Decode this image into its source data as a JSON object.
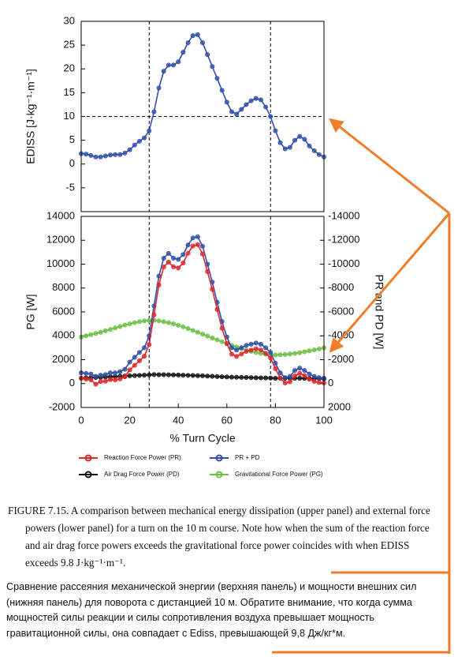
{
  "chart_data": [
    {
      "type": "line",
      "ylabel": "EDISS [J·kg⁻¹·m⁻¹]",
      "x": [
        0,
        2,
        4,
        6,
        8,
        10,
        12,
        14,
        16,
        18,
        20,
        22,
        24,
        26,
        28,
        30,
        32,
        34,
        36,
        38,
        40,
        42,
        44,
        46,
        48,
        50,
        52,
        54,
        56,
        58,
        60,
        62,
        64,
        66,
        68,
        70,
        72,
        74,
        76,
        78,
        80,
        82,
        84,
        86,
        88,
        90,
        92,
        94,
        96,
        98,
        100
      ],
      "values": [
        2.2,
        2.1,
        1.8,
        1.5,
        1.5,
        1.7,
        1.9,
        2.0,
        2.0,
        2.3,
        3.0,
        4.0,
        4.8,
        5.5,
        7.0,
        11,
        16,
        19.5,
        20.8,
        20.8,
        21.5,
        23.5,
        25.5,
        27.0,
        27.2,
        25.5,
        23,
        20.5,
        18,
        15.5,
        13,
        11,
        10.5,
        11.5,
        12.5,
        13.3,
        13.8,
        13.5,
        12,
        10,
        7,
        4.5,
        3.2,
        3.5,
        5,
        5.8,
        5.2,
        3.8,
        2.8,
        2.0,
        1.5
      ],
      "color": "#2f4fa8",
      "xlim": [
        0,
        100
      ],
      "ylim": [
        -10,
        30
      ],
      "yticks": [
        -5,
        0,
        5,
        10,
        15,
        20,
        25,
        30
      ],
      "hlines": [
        10
      ],
      "vlines": [
        28,
        78
      ]
    },
    {
      "type": "line",
      "xlabel": "% Turn Cycle",
      "ylabel": "PG [W]",
      "y2label": "PR and PD [W]",
      "x": [
        0,
        2,
        4,
        6,
        8,
        10,
        12,
        14,
        16,
        18,
        20,
        22,
        24,
        26,
        28,
        30,
        32,
        34,
        36,
        38,
        40,
        42,
        44,
        46,
        48,
        50,
        52,
        54,
        56,
        58,
        60,
        62,
        64,
        66,
        68,
        70,
        72,
        74,
        76,
        78,
        80,
        82,
        84,
        86,
        88,
        90,
        92,
        94,
        96,
        98,
        100
      ],
      "series": [
        {
          "name": "Reaction Force Power (PR)",
          "color": "#e0262b",
          "axis": "y2",
          "values": [
            -450,
            -380,
            -310,
            50,
            -170,
            -200,
            -330,
            -310,
            -390,
            -570,
            -1150,
            -1530,
            -1910,
            -2290,
            -3270,
            -5750,
            -8260,
            -9760,
            -10170,
            -9780,
            -9680,
            -10100,
            -10910,
            -11520,
            -11640,
            -10850,
            -9370,
            -7890,
            -6210,
            -4630,
            -3350,
            -2460,
            -2270,
            -2480,
            -2690,
            -2800,
            -2910,
            -2820,
            -2530,
            -2140,
            -1250,
            -450,
            -50,
            -150,
            -650,
            -850,
            -660,
            -370,
            -180,
            -90,
            -50
          ]
        },
        {
          "name": "PR + PD",
          "color": "#2f4fa8",
          "axis": "y2",
          "values": [
            -900,
            -850,
            -800,
            -600,
            -700,
            -750,
            -900,
            -900,
            -1000,
            -1200,
            -1800,
            -2200,
            -2600,
            -3000,
            -4000,
            -6500,
            -9000,
            -10500,
            -10900,
            -10500,
            -10400,
            -10800,
            -11600,
            -12200,
            -12300,
            -11500,
            -10000,
            -8500,
            -6800,
            -5200,
            -3900,
            -3000,
            -2800,
            -3000,
            -3200,
            -3300,
            -3400,
            -3300,
            -3000,
            -2600,
            -1700,
            -900,
            -500,
            -600,
            -1100,
            -1300,
            -1100,
            -800,
            -600,
            -500,
            -450
          ]
        },
        {
          "name": "Air Drag Force Power (PD)",
          "color": "#111111",
          "axis": "y2",
          "values": [
            -450,
            -470,
            -490,
            -510,
            -530,
            -550,
            -570,
            -590,
            -610,
            -630,
            -650,
            -670,
            -690,
            -710,
            -730,
            -750,
            -745,
            -740,
            -735,
            -725,
            -720,
            -705,
            -690,
            -680,
            -665,
            -650,
            -630,
            -610,
            -590,
            -570,
            -550,
            -540,
            -530,
            -520,
            -510,
            -500,
            -490,
            -480,
            -470,
            -460,
            -450,
            -450,
            -450,
            -450,
            -450,
            -450,
            -440,
            -430,
            -420,
            -410,
            -400
          ]
        },
        {
          "name": "Gravitational Force Power (PG)",
          "color": "#6cbf45",
          "values": [
            3900,
            4000,
            4100,
            4200,
            4300,
            4420,
            4540,
            4660,
            4780,
            4900,
            5000,
            5100,
            5180,
            5250,
            5290,
            5300,
            5250,
            5180,
            5100,
            5000,
            4880,
            4750,
            4600,
            4450,
            4300,
            4140,
            3980,
            3820,
            3660,
            3500,
            3350,
            3200,
            3060,
            2930,
            2810,
            2700,
            2600,
            2520,
            2460,
            2420,
            2400,
            2410,
            2440,
            2480,
            2530,
            2590,
            2660,
            2740,
            2820,
            2900,
            2990
          ]
        }
      ],
      "xlim": [
        0,
        100
      ],
      "xticks": [
        0,
        20,
        40,
        60,
        80,
        100
      ],
      "ylim": [
        -2000,
        14000
      ],
      "yticks": [
        -2000,
        0,
        2000,
        4000,
        6000,
        8000,
        10000,
        12000,
        14000
      ],
      "y2lim": [
        2000,
        -14000
      ],
      "y2ticks": [
        2000,
        0,
        -2000,
        -4000,
        -6000,
        -8000,
        -10000,
        -12000,
        -14000
      ],
      "vlines": [
        28,
        78
      ]
    }
  ],
  "caption": "FIGURE 7.15. A comparison between mechanical energy dissipation (upper panel) and external force powers (lower panel) for a turn on the 10 m course. Note how when the sum of the reaction force and air drag force powers exceeds the gravitational force power coincides with when EDISS exceeds 9.8 J·kg⁻¹·m⁻¹.",
  "translation": "Сравнение рассеяния механической энергии (верхняя панель) и мощности внешних сил (нижняя панель) для поворота с дистанцией 10 м. Обратите внимание, что когда сумма мощностей силы реакции и силы сопротивления воздуха превышает мощность гравитационной силы, она совпадает с Ediss, превышающей 9,8 Дж/кг*м."
}
